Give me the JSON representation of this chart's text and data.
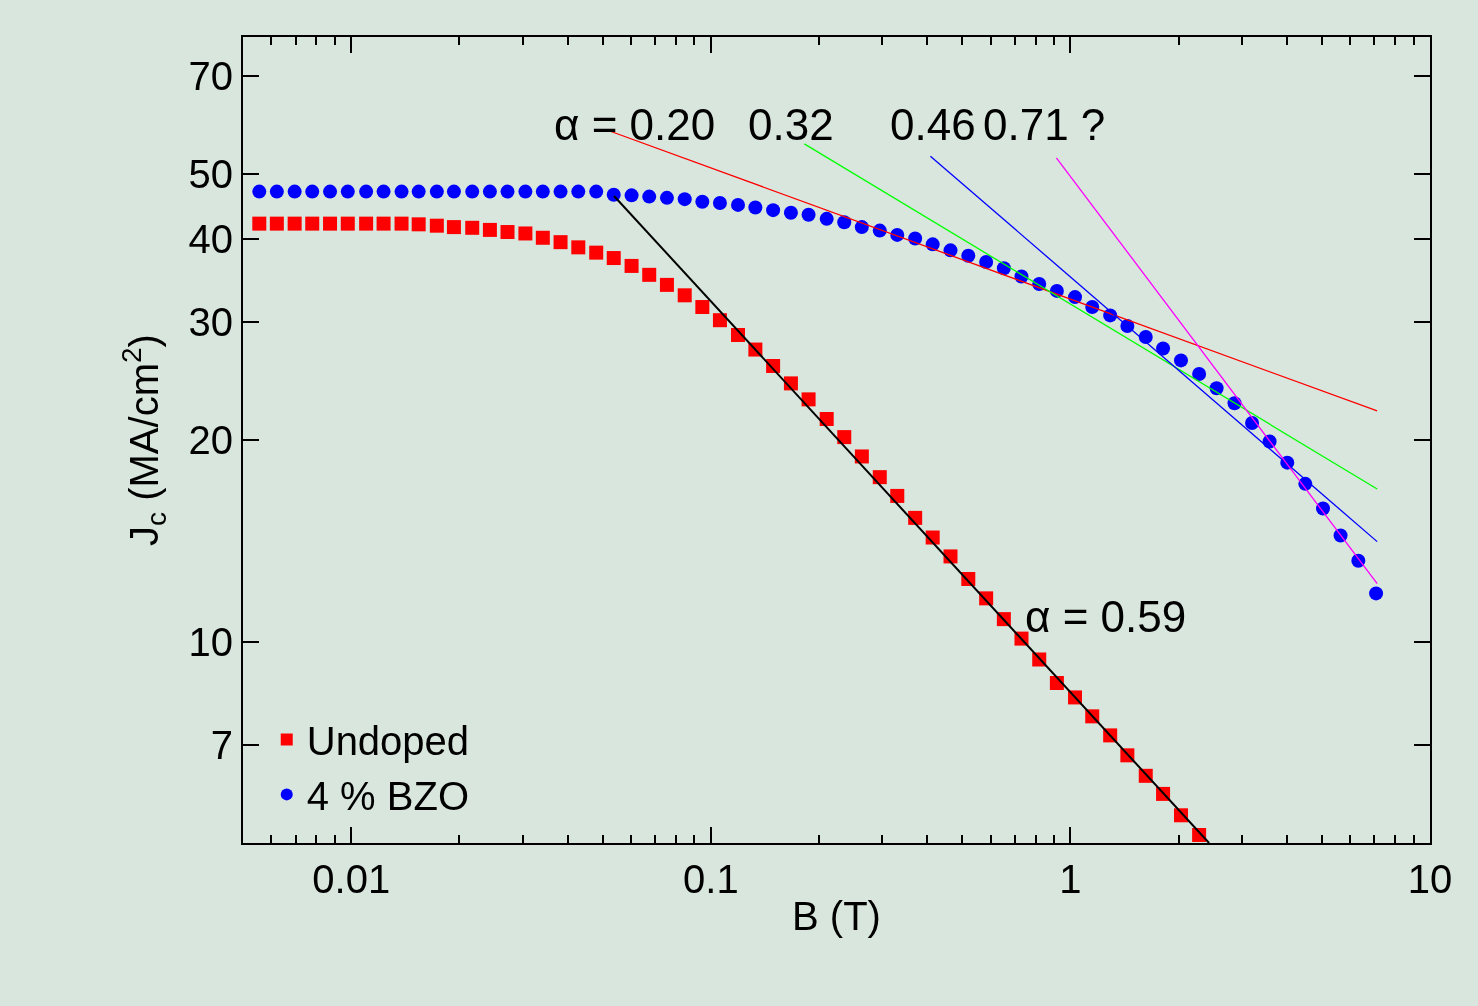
{
  "chart_data": {
    "type": "scatter",
    "xlabel": "B (T)",
    "ylabel": "J$_{c}$ (MA/cm$^{2}$)",
    "log": "xy",
    "grid": false,
    "legend": "bottom left",
    "xlim": [
      0.005,
      10
    ],
    "ylim": [
      5,
      80
    ],
    "xticks": [
      {
        "value": 0.005,
        "label": null
      },
      {
        "value": 0.006,
        "label": null
      },
      {
        "value": 0.007,
        "label": null
      },
      {
        "value": 0.008,
        "label": null
      },
      {
        "value": 0.009,
        "label": null
      },
      0.01,
      {
        "value": 0.02,
        "label": null
      },
      {
        "value": 0.03,
        "label": null
      },
      {
        "value": 0.04,
        "label": null
      },
      {
        "value": 0.05,
        "label": null
      },
      {
        "value": 0.06,
        "label": null
      },
      {
        "value": 0.07,
        "label": null
      },
      {
        "value": 0.08,
        "label": null
      },
      {
        "value": 0.09,
        "label": null
      },
      0.1,
      {
        "value": 0.2,
        "label": null
      },
      {
        "value": 0.3,
        "label": null
      },
      {
        "value": 0.4,
        "label": null
      },
      {
        "value": 0.5,
        "label": null
      },
      {
        "value": 0.6,
        "label": null
      },
      {
        "value": 0.7,
        "label": null
      },
      {
        "value": 0.8,
        "label": null
      },
      {
        "value": 0.9,
        "label": null
      },
      1,
      {
        "value": 2,
        "label": null
      },
      {
        "value": 3,
        "label": null
      },
      {
        "value": 4,
        "label": null
      },
      {
        "value": 5,
        "label": null
      },
      {
        "value": 6,
        "label": null
      },
      {
        "value": 7,
        "label": null
      },
      {
        "value": 8,
        "label": null
      },
      {
        "value": 9,
        "label": null
      },
      10
    ],
    "yticks": [
      7,
      10,
      20,
      30,
      40,
      50,
      70
    ],
    "series": [
      {
        "name": "Undoped",
        "marker": "square",
        "color": "#ff0000",
        "x": [
          0.00555,
          0.00621,
          0.00696,
          0.00779,
          0.00873,
          0.00978,
          0.011,
          0.0123,
          0.0138,
          0.0154,
          0.0173,
          0.0193,
          0.0217,
          0.0243,
          0.0272,
          0.0305,
          0.0341,
          0.0382,
          0.0428,
          0.048,
          0.0537,
          0.0602,
          0.0674,
          0.0755,
          0.0846,
          0.0947,
          0.106,
          0.119,
          0.133,
          0.149,
          0.167,
          0.187,
          0.21,
          0.235,
          0.263,
          0.295,
          0.33,
          0.37,
          0.414,
          0.464,
          0.52,
          0.583,
          0.653,
          0.731,
          0.819,
          0.917,
          1.03,
          1.15,
          1.29,
          1.44,
          1.62,
          1.81,
          2.03,
          2.28
        ],
        "values": [
          42.1,
          42.1,
          42.1,
          42.1,
          42.1,
          42.1,
          42.1,
          42.1,
          42.1,
          42.0,
          41.8,
          41.6,
          41.5,
          41.2,
          40.9,
          40.7,
          40.1,
          39.5,
          38.8,
          38.1,
          37.4,
          36.4,
          35.3,
          34.1,
          32.9,
          31.6,
          30.2,
          28.7,
          27.3,
          25.8,
          24.3,
          23.0,
          21.5,
          20.2,
          18.9,
          17.6,
          16.5,
          15.3,
          14.3,
          13.4,
          12.4,
          11.6,
          10.8,
          10.1,
          9.4,
          8.67,
          8.25,
          7.73,
          7.24,
          6.76,
          6.3,
          5.92,
          5.5,
          5.14
        ]
      },
      {
        "name": "4 % BZO",
        "marker": "circle",
        "color": "#0000ff",
        "x": [
          0.00555,
          0.00621,
          0.00696,
          0.00779,
          0.00873,
          0.00978,
          0.011,
          0.0123,
          0.0138,
          0.0154,
          0.0173,
          0.0193,
          0.0217,
          0.0243,
          0.0272,
          0.0305,
          0.0341,
          0.0382,
          0.0428,
          0.048,
          0.0537,
          0.0602,
          0.0674,
          0.0755,
          0.0846,
          0.0947,
          0.106,
          0.119,
          0.133,
          0.149,
          0.167,
          0.187,
          0.21,
          0.235,
          0.263,
          0.295,
          0.33,
          0.37,
          0.414,
          0.464,
          0.52,
          0.583,
          0.653,
          0.731,
          0.819,
          0.917,
          1.03,
          1.15,
          1.29,
          1.44,
          1.62,
          1.81,
          2.03,
          2.28,
          2.55,
          2.86,
          3.2,
          3.58,
          4.01,
          4.5,
          5.04,
          5.64,
          6.32,
          7.08
        ],
        "values": [
          47.0,
          47.0,
          47.0,
          47.0,
          47.0,
          47.0,
          47.0,
          47.0,
          47.0,
          47.0,
          47.0,
          47.0,
          47.0,
          47.0,
          47.0,
          47.0,
          47.0,
          47.0,
          47.0,
          47.0,
          46.5,
          46.4,
          46.2,
          46.0,
          45.8,
          45.4,
          45.2,
          44.9,
          44.5,
          44.1,
          43.7,
          43.4,
          42.8,
          42.3,
          41.6,
          41.1,
          40.5,
          40.0,
          39.2,
          38.4,
          37.7,
          36.9,
          36.1,
          35.1,
          34.2,
          33.4,
          32.7,
          31.6,
          30.7,
          29.6,
          28.5,
          27.4,
          26.3,
          25.1,
          23.9,
          22.7,
          21.2,
          19.9,
          18.5,
          17.2,
          15.8,
          14.4,
          13.2,
          11.8
        ]
      },
      {
        "type": "line",
        "color": "#000000",
        "x": [
          0.0538,
          2.43
        ],
        "values": [
          46.3,
          5.0
        ]
      },
      {
        "type": "line",
        "color": "#ff0000",
        "x": [
          0.0523,
          7.13
        ],
        "values": [
          57.9,
          22.1
        ]
      },
      {
        "type": "line",
        "color": "#00ff00",
        "x": [
          0.182,
          7.13
        ],
        "values": [
          55.4,
          16.9
        ]
      },
      {
        "type": "line",
        "color": "#0000ff",
        "x": [
          0.408,
          7.13
        ],
        "values": [
          53.1,
          14.1
        ]
      },
      {
        "type": "line",
        "color": "#ff00ff",
        "x": [
          0.914,
          7.13
        ],
        "values": [
          52.8,
          12.2
        ]
      }
    ],
    "annotations": [
      "α = 0.20",
      "0.32",
      "0.46",
      "0.71 ?",
      "α = 0.59"
    ]
  }
}
